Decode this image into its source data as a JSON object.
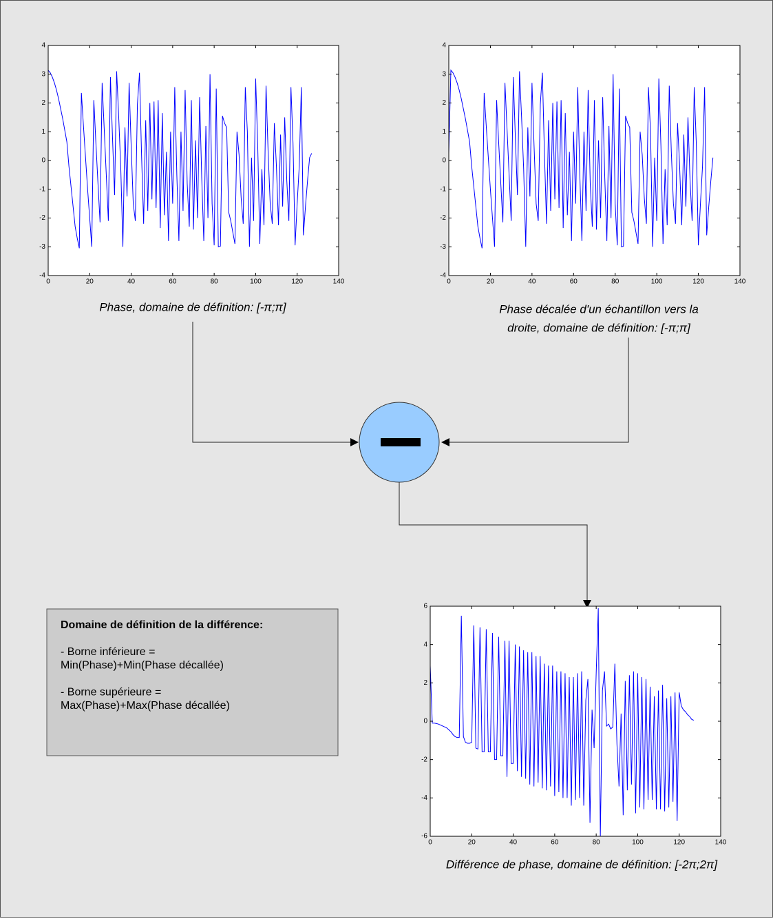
{
  "chart_data": [
    {
      "type": "line",
      "caption": [
        "Phase, domaine de définition: [-π;π]"
      ],
      "xlim": [
        0,
        140
      ],
      "xticks": [
        0,
        20,
        40,
        60,
        80,
        100,
        120,
        140
      ],
      "ylim": [
        -4,
        4
      ],
      "yticks": [
        -4,
        -3,
        -2,
        -1,
        0,
        1,
        2,
        3,
        4
      ],
      "series": [
        {
          "color": "#0000ff",
          "values": [
            3.14,
            3.05,
            2.9,
            2.7,
            2.45,
            2.15,
            1.8,
            1.45,
            1.05,
            0.65,
            -0.2,
            -0.9,
            -1.6,
            -2.3,
            -2.7,
            -3.05,
            2.35,
            1.2,
            0.1,
            -1.0,
            -2.0,
            -3.0,
            2.1,
            0.6,
            -0.8,
            -2.15,
            2.7,
            1.1,
            -0.5,
            -2.1,
            2.9,
            0.8,
            -1.2,
            3.1,
            1.5,
            -0.3,
            -3.0,
            1.15,
            -1.25,
            2.7,
            0.5,
            -1.5,
            -2.1,
            1.95,
            3.05,
            0.2,
            -2.2,
            1.4,
            -1.75,
            2.0,
            -1.35,
            2.05,
            -1.65,
            2.1,
            -2.35,
            1.65,
            -1.9,
            0.3,
            -2.8,
            1.0,
            -1.5,
            2.55,
            -0.5,
            -2.8,
            1.0,
            -1.75,
            2.45,
            -0.8,
            -2.3,
            2.1,
            -2.4,
            0.7,
            -2.0,
            2.2,
            -0.6,
            -2.8,
            1.2,
            -2.0,
            3.0,
            -1.5,
            -2.95,
            2.5,
            -3.0,
            -2.98,
            1.55,
            1.3,
            1.15,
            -1.8,
            -2.1,
            -2.5,
            -2.9,
            1.0,
            0.2,
            -1.3,
            -2.2,
            2.55,
            1.0,
            -3.0,
            0.1,
            -2.1,
            2.85,
            0.5,
            -2.9,
            -0.3,
            -2.25,
            2.6,
            0.3,
            -1.5,
            -2.2,
            1.3,
            -0.2,
            -2.25,
            0.9,
            -1.6,
            1.5,
            -0.7,
            -2.1,
            2.55,
            0.6,
            -2.95,
            -1.5,
            -0.2,
            2.55,
            -2.6,
            -1.6,
            -0.7,
            0.1,
            0.25
          ]
        }
      ]
    },
    {
      "type": "line",
      "caption": [
        "Phase décalée d'un échantillon vers la",
        "droite, domaine de définition: [-π;π]"
      ],
      "xlim": [
        0,
        140
      ],
      "xticks": [
        0,
        20,
        40,
        60,
        80,
        100,
        120,
        140
      ],
      "ylim": [
        -4,
        4
      ],
      "yticks": [
        -4,
        -3,
        -2,
        -1,
        0,
        1,
        2,
        3,
        4
      ],
      "series": [
        {
          "color": "#0000ff",
          "values": [
            0.25,
            3.14,
            3.05,
            2.9,
            2.7,
            2.45,
            2.15,
            1.8,
            1.45,
            1.05,
            0.65,
            -0.2,
            -0.9,
            -1.6,
            -2.3,
            -2.7,
            -3.05,
            2.35,
            1.2,
            0.1,
            -1.0,
            -2.0,
            -3.0,
            2.1,
            0.6,
            -0.8,
            -2.15,
            2.7,
            1.1,
            -0.5,
            -2.1,
            2.9,
            0.8,
            -1.2,
            3.1,
            1.5,
            -0.3,
            -3.0,
            1.15,
            -1.25,
            2.7,
            0.5,
            -1.5,
            -2.1,
            1.95,
            3.05,
            0.2,
            -2.2,
            1.4,
            -1.75,
            2.0,
            -1.35,
            2.05,
            -1.65,
            2.1,
            -2.35,
            1.65,
            -1.9,
            0.3,
            -2.8,
            1.0,
            -1.5,
            2.55,
            -0.5,
            -2.8,
            1.0,
            -1.75,
            2.45,
            -0.8,
            -2.3,
            2.1,
            -2.4,
            0.7,
            -2.0,
            2.2,
            -0.6,
            -2.8,
            1.2,
            -2.0,
            3.0,
            -1.5,
            -2.95,
            2.5,
            -3.0,
            -2.98,
            1.55,
            1.3,
            1.15,
            -1.8,
            -2.1,
            -2.5,
            -2.9,
            1.0,
            0.2,
            -1.3,
            -2.2,
            2.55,
            1.0,
            -3.0,
            0.1,
            -2.1,
            2.85,
            0.5,
            -2.9,
            -0.3,
            -2.25,
            2.6,
            0.3,
            -1.5,
            -2.2,
            1.3,
            -0.2,
            -2.25,
            0.9,
            -1.6,
            1.5,
            -0.7,
            -2.1,
            2.55,
            0.6,
            -2.95,
            -1.5,
            -0.2,
            2.55,
            -2.6,
            -1.6,
            -0.7,
            0.1
          ]
        }
      ]
    },
    {
      "type": "line",
      "caption": [
        "Différence de phase, domaine de définition: [-2π;2π]"
      ],
      "xlim": [
        0,
        140
      ],
      "xticks": [
        0,
        20,
        40,
        60,
        80,
        100,
        120,
        140
      ],
      "ylim": [
        -6,
        6
      ],
      "yticks": [
        -6,
        -4,
        -2,
        0,
        2,
        4,
        6
      ],
      "series": [
        {
          "color": "#0000ff",
          "values": [
            2.9,
            -0.1,
            -0.1,
            -0.12,
            -0.15,
            -0.2,
            -0.25,
            -0.3,
            -0.35,
            -0.45,
            -0.55,
            -0.7,
            -0.8,
            -0.85,
            -0.85,
            5.5,
            -0.8,
            -1.1,
            -1.15,
            -1.15,
            -1.1,
            5.0,
            -1.4,
            -1.45,
            4.9,
            -1.6,
            -1.6,
            4.8,
            -1.6,
            -1.6,
            4.6,
            -2.0,
            -2.0,
            4.4,
            -1.8,
            -1.8,
            4.2,
            -2.9,
            4.2,
            -2.2,
            -2.2,
            4.0,
            -2.6,
            3.9,
            -2.9,
            3.7,
            -3.0,
            3.6,
            -3.3,
            3.6,
            -3.4,
            3.4,
            -3.2,
            3.4,
            -3.5,
            3.0,
            -3.6,
            2.9,
            -3.4,
            2.9,
            -3.9,
            2.6,
            -3.7,
            2.6,
            -4.0,
            2.5,
            -4.0,
            2.3,
            -4.4,
            2.3,
            -4.1,
            2.5,
            -4.0,
            2.6,
            -4.4,
            1.1,
            2.2,
            -5.3,
            0.6,
            -1.4,
            2.5,
            5.9,
            -6,
            1.6,
            2.6,
            -0.25,
            -0.15,
            -0.4,
            -0.3,
            3.0,
            -1.2,
            -3.4,
            0.4,
            -4.9,
            2.1,
            -3.6,
            2.4,
            -3.3,
            2.6,
            -4.8,
            2.5,
            -4.5,
            2.3,
            -4.6,
            2.2,
            -4.1,
            1.8,
            -4.1,
            1.3,
            -4.6,
            1.6,
            -4.6,
            1.9,
            -4.7,
            1.2,
            -4.5,
            1.3,
            -4.2,
            1.5,
            -5.2,
            1.5,
            0.8,
            0.6,
            0.5,
            0.35,
            0.25,
            0.1,
            0.05
          ]
        }
      ]
    }
  ],
  "note": {
    "title": "Domaine de définition de la différence:",
    "lines": [
      "- Borne inférieure =",
      "Min(Phase)+Min(Phase décallée)",
      "",
      "- Borne supérieure =",
      "Max(Phase)+Max(Phase décallée)"
    ]
  }
}
